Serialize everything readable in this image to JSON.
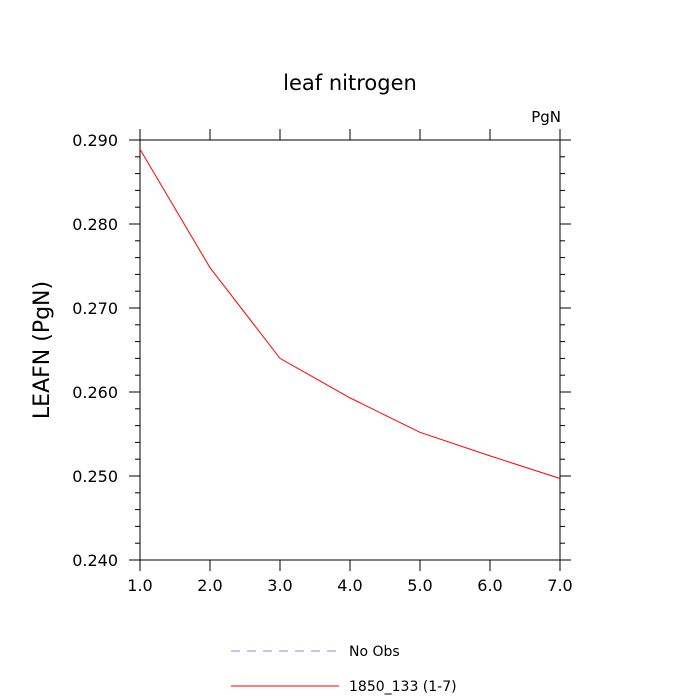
{
  "chart_data": {
    "type": "line",
    "title": "leaf nitrogen",
    "units_label": "PgN",
    "xlabel": "",
    "ylabel": "LEAFN  (PgN)",
    "xlim": [
      1.0,
      7.0
    ],
    "ylim": [
      0.24,
      0.29
    ],
    "x_ticks": [
      "1.0",
      "2.0",
      "3.0",
      "4.0",
      "5.0",
      "6.0",
      "7.0"
    ],
    "y_ticks": [
      "0.240",
      "0.250",
      "0.260",
      "0.270",
      "0.280",
      "0.290"
    ],
    "grid": false,
    "legend_position": "bottom",
    "series": [
      {
        "name": "1850_133 (1-7)",
        "color": "#ff0000",
        "style": "solid",
        "x": [
          1,
          2,
          3,
          4,
          5,
          6,
          7
        ],
        "values": [
          0.2889,
          0.2748,
          0.264,
          0.2593,
          0.2552,
          0.2524,
          0.2497
        ]
      }
    ],
    "legend": [
      {
        "label": "No Obs",
        "color": "#8888ee",
        "style": "dashed"
      },
      {
        "label": "1850_133 (1-7)",
        "color": "#ff0000",
        "style": "solid"
      }
    ]
  }
}
